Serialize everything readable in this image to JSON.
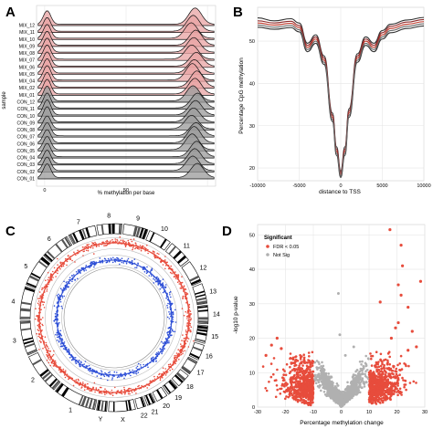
{
  "panels": {
    "A": {
      "letter": "A"
    },
    "B": {
      "letter": "B"
    },
    "C": {
      "letter": "C"
    },
    "D": {
      "letter": "D"
    }
  },
  "chart_data": [
    {
      "panel": "A",
      "type": "area",
      "subtype": "ridgeline",
      "xlabel": "% methylation per base",
      "ylabel": "sample",
      "x_ticks": [
        0,
        50
      ],
      "xlim": [
        -5,
        105
      ],
      "grid": true,
      "series": [
        {
          "name": "MIX_12",
          "group": "MIX"
        },
        {
          "name": "MIX_11",
          "group": "MIX"
        },
        {
          "name": "MIX_10",
          "group": "MIX"
        },
        {
          "name": "MIX_09",
          "group": "MIX"
        },
        {
          "name": "MIX_08",
          "group": "MIX"
        },
        {
          "name": "MIX_07",
          "group": "MIX"
        },
        {
          "name": "MIX_06",
          "group": "MIX"
        },
        {
          "name": "MIX_05",
          "group": "MIX"
        },
        {
          "name": "MIX_04",
          "group": "MIX"
        },
        {
          "name": "MIX_02",
          "group": "MIX"
        },
        {
          "name": "MIX_01",
          "group": "MIX"
        },
        {
          "name": "CON_12",
          "group": "CON"
        },
        {
          "name": "CON_11",
          "group": "CON"
        },
        {
          "name": "CON_10",
          "group": "CON"
        },
        {
          "name": "CON_09",
          "group": "CON"
        },
        {
          "name": "CON_08",
          "group": "CON"
        },
        {
          "name": "CON_07",
          "group": "CON"
        },
        {
          "name": "CON_06",
          "group": "CON"
        },
        {
          "name": "CON_05",
          "group": "CON"
        },
        {
          "name": "CON_04",
          "group": "CON"
        },
        {
          "name": "CON_03",
          "group": "CON"
        },
        {
          "name": "CON_02",
          "group": "CON"
        },
        {
          "name": "CON_01",
          "group": "CON"
        }
      ],
      "colors": {
        "MIX": "#e8a3a3",
        "CON": "#9a9a9a"
      }
    },
    {
      "panel": "B",
      "type": "line",
      "xlabel": "distance to TSS",
      "ylabel": "Percentage CpG methylation",
      "xlim": [
        -10000,
        10000
      ],
      "ylim": [
        17,
        58
      ],
      "x_ticks": [
        -10000,
        -5000,
        0,
        5000,
        10000
      ],
      "y_ticks": [
        20,
        30,
        40,
        50
      ],
      "grid": true,
      "x": [
        -10000,
        -8000,
        -6000,
        -5000,
        -4000,
        -3000,
        -2000,
        -1000,
        -500,
        0,
        500,
        1000,
        2000,
        3000,
        4000,
        5000,
        6000,
        8000,
        10000
      ],
      "series": [
        {
          "values": [
            54.3,
            53.8,
            54.2,
            53.2,
            48.5,
            50.5,
            45.5,
            32.0,
            24.0,
            18.5,
            24.0,
            33.0,
            46.0,
            50.0,
            48.5,
            51.5,
            53.0,
            54.0,
            54.6
          ],
          "color": "#c0392b"
        },
        {
          "values": [
            55.5,
            54.8,
            55.3,
            54.3,
            49.5,
            51.5,
            46.5,
            33.0,
            25.0,
            19.3,
            25.0,
            34.0,
            47.0,
            51.0,
            49.5,
            52.5,
            54.0,
            55.0,
            55.6
          ],
          "color": "#333333"
        },
        {
          "values": [
            53.3,
            52.8,
            53.2,
            52.2,
            47.5,
            49.5,
            44.5,
            31.0,
            23.0,
            17.8,
            23.0,
            32.0,
            45.0,
            49.0,
            47.5,
            50.5,
            52.0,
            53.0,
            53.6
          ],
          "color": "#333333"
        },
        {
          "values": [
            54.8,
            54.3,
            54.7,
            53.7,
            49.0,
            51.0,
            46.0,
            32.5,
            24.5,
            18.9,
            24.5,
            33.5,
            46.5,
            50.5,
            49.0,
            52.0,
            53.5,
            54.5,
            55.1
          ],
          "color": "#8e2b2b"
        },
        {
          "values": [
            53.8,
            53.3,
            53.7,
            52.7,
            48.0,
            50.0,
            45.0,
            31.5,
            23.5,
            18.2,
            23.5,
            32.5,
            45.5,
            49.5,
            48.0,
            51.0,
            52.5,
            53.5,
            54.1
          ],
          "color": "#666666"
        }
      ]
    },
    {
      "panel": "C",
      "type": "scatter",
      "subtype": "circos",
      "chromosomes": [
        "1",
        "2",
        "3",
        "4",
        "5",
        "6",
        "7",
        "8",
        "9",
        "10",
        "11",
        "12",
        "13",
        "14",
        "15",
        "16",
        "17",
        "18",
        "19",
        "20",
        "21",
        "22",
        "X",
        "Y"
      ],
      "tracks": [
        {
          "name": "ideogram",
          "color": "#000000"
        },
        {
          "name": "outer",
          "color": "#e74c3c"
        },
        {
          "name": "inner",
          "color": "#2e4fd6"
        }
      ]
    },
    {
      "panel": "D",
      "type": "scatter",
      "subtype": "volcano",
      "xlabel": "Percentage methylation change",
      "ylabel": "-log10 p-value",
      "xlim": [
        -30,
        30
      ],
      "ylim": [
        0,
        53
      ],
      "x_ticks": [
        -30,
        -20,
        -10,
        0,
        10,
        20,
        30
      ],
      "y_ticks": [
        0,
        10,
        20,
        30,
        40,
        50
      ],
      "grid": true,
      "legend": {
        "title": "Significant",
        "position": "top-left",
        "entries": [
          {
            "label": "FDR < 0.05",
            "color": "#e74c3c"
          },
          {
            "label": "Not Sig",
            "color": "#b0b0b0"
          }
        ]
      },
      "highlight_points": [
        {
          "x": 17.5,
          "y": 51.5
        },
        {
          "x": 21.5,
          "y": 47.0
        },
        {
          "x": 22.0,
          "y": 41.0
        },
        {
          "x": 28.5,
          "y": 36.5
        },
        {
          "x": 20.5,
          "y": 35.5
        },
        {
          "x": 21.5,
          "y": 32.5
        },
        {
          "x": 14.0,
          "y": 30.5
        },
        {
          "x": 24.0,
          "y": 29.0
        },
        {
          "x": 20.5,
          "y": 24.5
        },
        {
          "x": 19.5,
          "y": 23.0
        },
        {
          "x": 25.5,
          "y": 22.0
        },
        {
          "x": -23.0,
          "y": 20.0
        },
        {
          "x": -25.0,
          "y": 18.0
        },
        {
          "x": -21.5,
          "y": 17.0
        },
        {
          "x": 24.0,
          "y": 16.5
        },
        {
          "x": -27.0,
          "y": 15.0
        },
        {
          "x": 27.0,
          "y": 17.5
        },
        {
          "x": 18.0,
          "y": 20.0
        }
      ],
      "grey_highlights": [
        {
          "x": -1.0,
          "y": 33.0
        },
        {
          "x": 4.5,
          "y": 17.5
        },
        {
          "x": -0.5,
          "y": 21.0
        },
        {
          "x": 1.5,
          "y": 15.0
        }
      ]
    }
  ]
}
